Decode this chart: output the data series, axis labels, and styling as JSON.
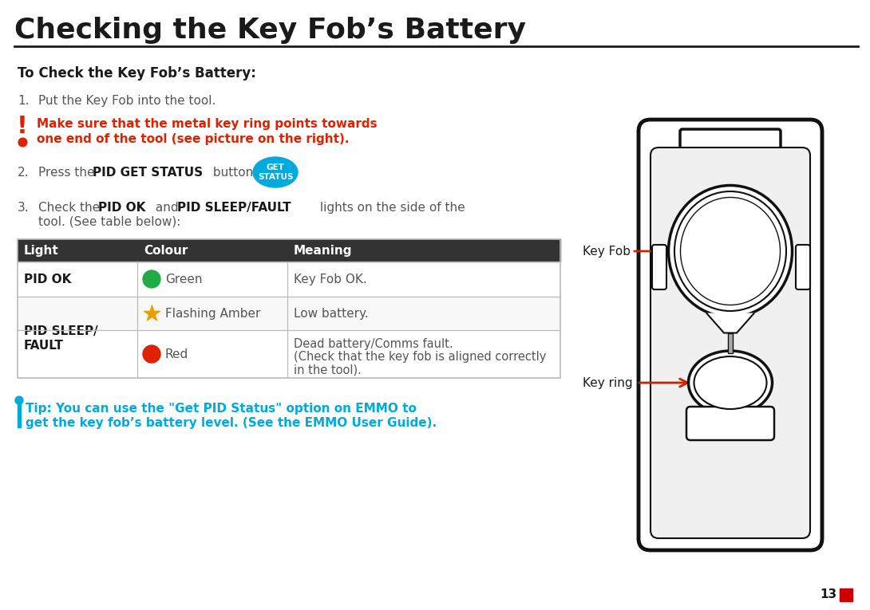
{
  "title": "Checking the Key Fob’s Battery",
  "bg_color": "#ffffff",
  "title_color": "#1a1a1a",
  "title_fontsize": 26,
  "header_line_color": "#1a1a1a",
  "section_title": "To Check the Key Fob’s Battery:",
  "warning_color": "#dd2200",
  "tip_color": "#00aadd",
  "table_header_bg": "#333333",
  "table_header_text": "#ffffff",
  "table_border_color": "#bbbbbb",
  "get_status_btn_color": "#00aadd",
  "get_status_text_color": "#ffffff",
  "page_number": "13",
  "page_num_color": "#cc0000",
  "arrow_color": "#cc2200",
  "label_color": "#1a1a1a",
  "text_gray": "#555555",
  "green_color": "#22aa44",
  "amber_color": "#e8a000",
  "red_color": "#dd2200"
}
